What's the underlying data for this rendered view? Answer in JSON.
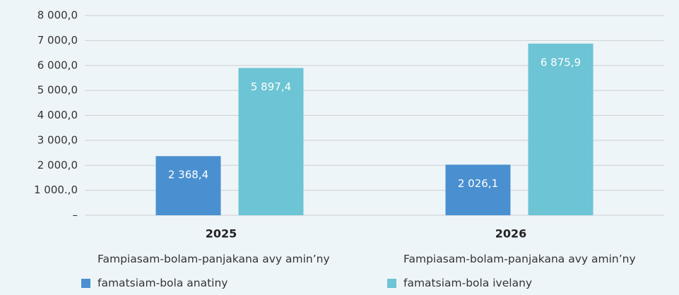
{
  "chart_data": {
    "type": "bar",
    "categories": [
      "2025",
      "2026"
    ],
    "series": [
      {
        "name": "Fampiasam-bolam-panjakana avy amin’ny famatsiam-bola anatiny",
        "color": "#4a90d0",
        "values": [
          2368.4,
          2026.1
        ],
        "value_labels": [
          "2 368,4",
          "2 026,1"
        ]
      },
      {
        "name": "Fampiasam-bolam-panjakana avy amin’ny famatsiam-bola ivelany",
        "color": "#6cc4d4",
        "values": [
          5897.4,
          6875.9
        ],
        "value_labels": [
          "5 897,4",
          "6 875,9"
        ]
      }
    ],
    "ylim": [
      0,
      8000
    ],
    "yticks": [
      {
        "value": 0,
        "label": "–"
      },
      {
        "value": 1000,
        "label": "1 000.,0"
      },
      {
        "value": 2000,
        "label": "2 000,0"
      },
      {
        "value": 3000,
        "label": "3 000,0"
      },
      {
        "value": 4000,
        "label": "4 000,0"
      },
      {
        "value": 5000,
        "label": "5 000,0"
      },
      {
        "value": 6000,
        "label": "6 000,0"
      },
      {
        "value": 7000,
        "label": "7 000,0"
      },
      {
        "value": 8000,
        "label": "8 000,0"
      }
    ],
    "grid": true
  }
}
